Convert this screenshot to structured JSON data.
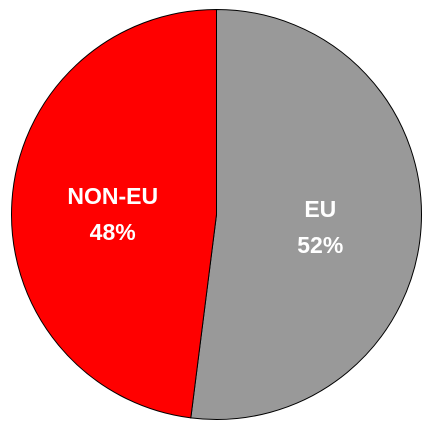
{
  "chart_data": {
    "type": "pie",
    "slices": [
      {
        "label": "EU",
        "value": 52,
        "value_label": "52%",
        "color": "#999999"
      },
      {
        "label": "NON-EU",
        "value": 48,
        "value_label": "48%",
        "color": "#ff0000"
      }
    ],
    "start": "12 o'clock",
    "direction": "clockwise",
    "outline_color": "#000000"
  }
}
